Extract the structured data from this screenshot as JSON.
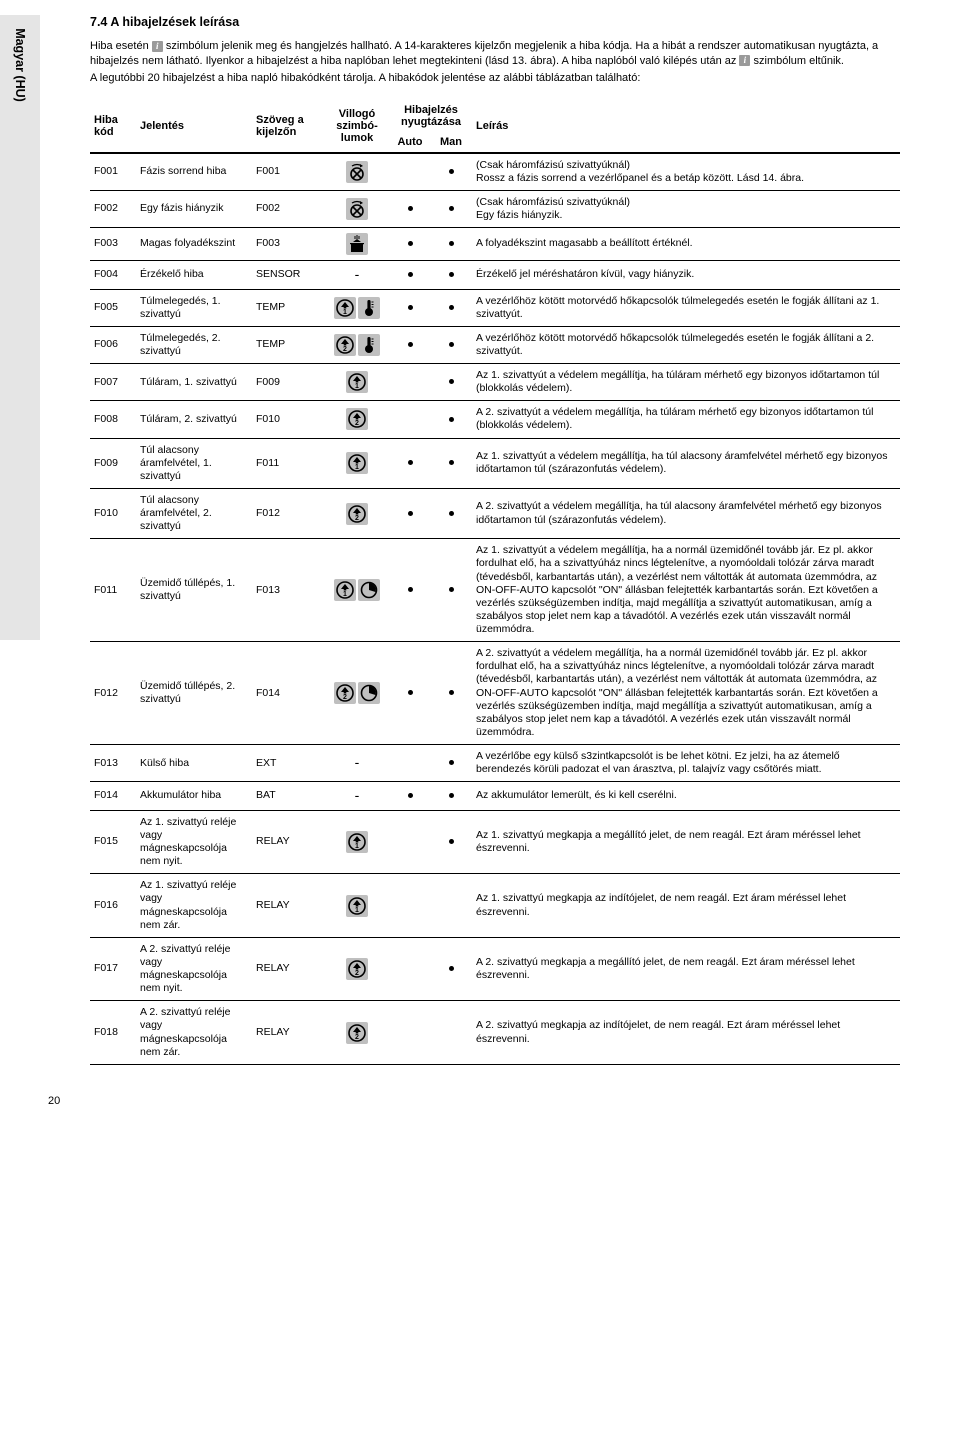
{
  "side_label": "Magyar (HU)",
  "heading": "7.4 A hibajelzések leírása",
  "intro": {
    "line1a": "Hiba esetén ",
    "line1b": " szimbólum jelenik meg és hangjelzés hallható. A 14-karakteres kijelzőn megjelenik a hiba kódja. Ha a hibát a rendszer automatikusan nyugtázta, a hibajelzés nem látható. Ilyenkor a hibajelzést a hiba naplóban lehet megtekinteni (lásd 13. ábra). A hiba naplóból való kilépés után az ",
    "line1c": " szimbólum eltűnik.",
    "line2": "A legutóbbi 20 hibajelzést a hiba napló hibakódként tárolja. A hibakódok jelentése az alábbi táblázatban található:"
  },
  "columns": {
    "code": "Hiba kód",
    "meaning": "Jelentés",
    "display": "Szöveg a kijelzőn",
    "symbols": "Villogó szimbó-lumok",
    "ack": "Hibajelzés nyugtázása",
    "auto": "Auto",
    "man": "Man",
    "desc": "Leírás"
  },
  "rows": [
    {
      "code": "F001",
      "meaning": "Fázis sorrend hiba",
      "display": "F001",
      "sym": [
        "arrow_fan"
      ],
      "auto": false,
      "man": true,
      "desc": "(Csak háromfázisú szivattyúknál)\nRossz a fázis sorrend a vezérlőpanel és a betáp között. Lásd 14. ábra.",
      "hline": true
    },
    {
      "code": "F002",
      "meaning": "Egy fázis hiányzik",
      "display": "F002",
      "sym": [
        "arrow_fan"
      ],
      "auto": true,
      "man": true,
      "desc": "(Csak háromfázisú szivattyúknál)\nEgy fázis hiányzik.",
      "hline": true
    },
    {
      "code": "F003",
      "meaning": "Magas folyadékszint",
      "display": "F003",
      "sym": [
        "level"
      ],
      "auto": true,
      "man": true,
      "desc": "A folyadékszint magasabb a beállított értéknél.",
      "hline": true
    },
    {
      "code": "F004",
      "meaning": "Érzékelő hiba",
      "display": "SENSOR",
      "sym": [
        "dash"
      ],
      "auto": true,
      "man": true,
      "desc": "Érzékelő jel méréshatáron kívül, vagy hiányzik.",
      "hline": true
    },
    {
      "code": "F005",
      "meaning": "Túlmelegedés, 1. szivattyú",
      "display": "TEMP",
      "sym": [
        "up1",
        "thermo"
      ],
      "auto": true,
      "man": true,
      "desc": "A vezérlőhöz kötött motorvédő hőkapcsolók túlmelegedés esetén le fogják állítani az 1. szivattyút.",
      "hline": true
    },
    {
      "code": "F006",
      "meaning": "Túlmelegedés, 2. szivattyú",
      "display": "TEMP",
      "sym": [
        "up2",
        "thermo"
      ],
      "auto": true,
      "man": true,
      "desc": "A vezérlőhöz kötött motorvédő hőkapcsolók túlmelegedés esetén le fogják állítani a 2. szivattyút.",
      "hline": true
    },
    {
      "code": "F007",
      "meaning": "Túláram, 1. szivattyú",
      "display": "F009",
      "sym": [
        "up1"
      ],
      "auto": false,
      "man": true,
      "desc": "Az 1. szivattyút a védelem megállítja, ha túláram mérhető egy bizonyos időtartamon túl (blokkolás védelem).",
      "hline": true
    },
    {
      "code": "F008",
      "meaning": "Túláram, 2. szivattyú",
      "display": "F010",
      "sym": [
        "up2"
      ],
      "auto": false,
      "man": true,
      "desc": "A 2. szivattyút a védelem megállítja, ha túláram mérhető egy bizonyos időtartamon túl (blokkolás védelem).",
      "hline": true
    },
    {
      "code": "F009",
      "meaning": "Túl alacsony áramfelvétel, 1. szivattyú",
      "display": "F011",
      "sym": [
        "up1"
      ],
      "auto": true,
      "man": true,
      "desc": "Az 1. szivattyút a védelem megállítja, ha túl alacsony áramfelvétel mérhető egy bizonyos időtartamon túl (szárazonfutás védelem).",
      "hline": true
    },
    {
      "code": "F010",
      "meaning": "Túl alacsony áramfelvétel, 2. szivattyú",
      "display": "F012",
      "sym": [
        "up2"
      ],
      "auto": true,
      "man": true,
      "desc": "A 2. szivattyút a védelem megállítja, ha túl alacsony áramfelvétel mérhető egy bizonyos időtartamon túl (szárazonfutás védelem).",
      "hline": true
    },
    {
      "code": "F011",
      "meaning": "Üzemidő túllépés, 1. szivattyú",
      "display": "F013",
      "sym": [
        "up1",
        "clock"
      ],
      "auto": true,
      "man": true,
      "desc": "Az 1. szivattyút a védelem megállítja, ha a normál üzemidőnél tovább jár. Ez pl. akkor fordulhat elő, ha a szivattyúház nincs légtelenítve, a nyomóoldali tolózár zárva maradt (tévedésből, karbantartás után), a vezérlést nem váltották át automata üzemmódra, az ON-OFF-AUTO kapcsolót \"ON\" állásban felejtették karbantartás során. Ezt követően a vezérlés szükségüzemben indítja, majd megállítja a szivattyút automatikusan, amíg a szabályos stop jelet nem kap a távadótól. A vezérlés ezek után visszavált normál üzemmódra.",
      "hline": true
    },
    {
      "code": "F012",
      "meaning": "Üzemidő túllépés, 2. szivattyú",
      "display": "F014",
      "sym": [
        "up2",
        "clock"
      ],
      "auto": true,
      "man": true,
      "desc": "A 2. szivattyút a védelem megállítja, ha a normál üzemidőnél tovább jár. Ez pl. akkor fordulhat elő, ha a szivattyúház nincs légtelenítve, a nyomóoldali tolózár zárva maradt (tévedésből, karbantartás után), a vezérlést nem váltották át automata üzemmódra, az ON-OFF-AUTO kapcsolót \"ON\" állásban felejtették karbantartás során. Ezt követően a vezérlés szükségüzemben indítja, majd megállítja a szivattyút automatikusan, amíg a szabályos stop jelet nem kap a távadótól. A vezérlés ezek után visszavált normál üzemmódra.",
      "hline": true
    },
    {
      "code": "F013",
      "meaning": "Külső hiba",
      "display": "EXT",
      "sym": [
        "dash"
      ],
      "auto": false,
      "man": true,
      "desc": "A vezérlőbe egy külső s3zintkapcsolót is be lehet kötni. Ez jelzi, ha az átemelő berendezés körüli padozat el van árasztva, pl. talajvíz vagy csőtörés miatt.",
      "hline": true
    },
    {
      "code": "F014",
      "meaning": "Akkumulátor hiba",
      "display": "BAT",
      "sym": [
        "dash"
      ],
      "auto": true,
      "man": true,
      "desc": "Az akkumulátor lemerült, és ki kell cserélni.",
      "hline": true
    },
    {
      "code": "F015",
      "meaning": "Az 1. szivattyú reléje vagy mágneskapcsolója nem nyit.",
      "display": "RELAY",
      "sym": [
        "up1"
      ],
      "auto": false,
      "man": true,
      "desc": "Az 1. szivattyú megkapja a megállító jelet, de nem reagál. Ezt áram méréssel lehet észrevenni.",
      "hline": true
    },
    {
      "code": "F016",
      "meaning": "Az 1. szivattyú reléje vagy mágneskapcsolója nem zár.",
      "display": "RELAY",
      "sym": [
        "up1"
      ],
      "auto": false,
      "man": false,
      "desc": "Az 1. szivattyú megkapja az indítójelet, de nem reagál. Ezt áram méréssel lehet észrevenni.",
      "hline": true
    },
    {
      "code": "F017",
      "meaning": "A 2. szivattyú reléje vagy mágneskapcsolója nem nyit.",
      "display": "RELAY",
      "sym": [
        "up2"
      ],
      "auto": false,
      "man": true,
      "desc": "A 2. szivattyú megkapja a megállító jelet, de nem reagál. Ezt áram méréssel lehet észrevenni.",
      "hline": true
    },
    {
      "code": "F018",
      "meaning": "A 2. szivattyú reléje vagy mágneskapcsolója nem zár.",
      "display": "RELAY",
      "sym": [
        "up2"
      ],
      "auto": false,
      "man": false,
      "desc": "A 2. szivattyú megkapja az indítójelet, de nem reagál. Ezt áram méréssel lehet észrevenni.",
      "hline": true
    }
  ],
  "page_number": "20"
}
